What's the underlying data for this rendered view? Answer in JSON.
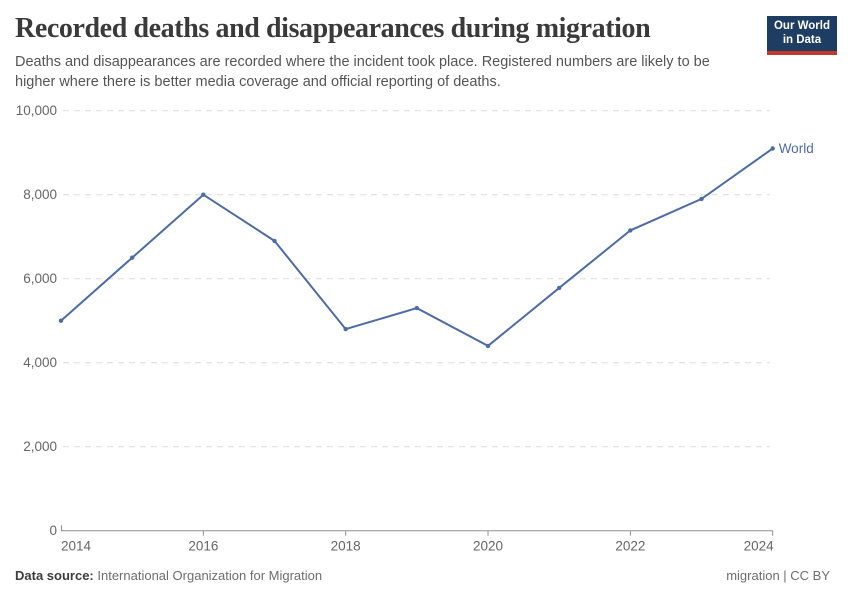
{
  "header": {
    "title": "Recorded deaths and disappearances during migration",
    "subtitle": "Deaths and disappearances are recorded where the incident took place. Registered numbers are likely to be higher where there is better media coverage and official reporting of deaths.",
    "logo": {
      "line1": "Our World",
      "line2": "in Data"
    }
  },
  "chart_data": {
    "type": "line",
    "title": "Recorded deaths and disappearances during migration",
    "x": [
      2014,
      2015,
      2016,
      2017,
      2018,
      2019,
      2020,
      2021,
      2022,
      2023,
      2024
    ],
    "series": [
      {
        "name": "World",
        "values": [
          5000,
          6500,
          8000,
          6900,
          4800,
          5300,
          4400,
          5780,
          7150,
          7900,
          9100
        ]
      }
    ],
    "xticks": [
      2014,
      2016,
      2018,
      2020,
      2022,
      2024
    ],
    "yticks": [
      0,
      2000,
      4000,
      6000,
      8000,
      10000
    ],
    "xlim": [
      2014,
      2024
    ],
    "ylim": [
      0,
      10000
    ],
    "grid": "horizontal-dashed",
    "legend_position": "end-of-line"
  },
  "footer": {
    "datasource_label": "Data source:",
    "datasource": "International Organization for Migration",
    "license": "migration | CC BY"
  },
  "colors": {
    "line": "#4d6ba6",
    "grid": "#dcdcdc",
    "axis": "#8f8f8f",
    "tick_label": "#666666",
    "logo_bg": "#1d3d63",
    "logo_accent": "#c0392b"
  }
}
